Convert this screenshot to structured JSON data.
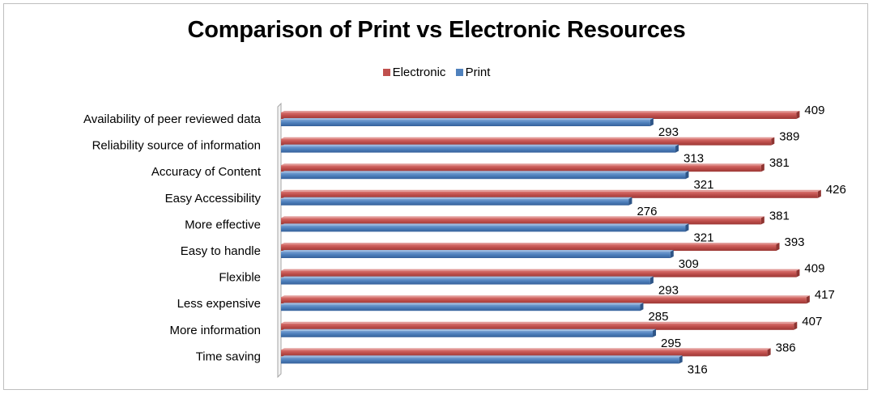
{
  "chart_data": {
    "type": "bar",
    "orientation": "horizontal",
    "title": "Comparison of Print vs Electronic Resources",
    "xlabel": "",
    "ylabel": "",
    "xlim": [
      0,
      450
    ],
    "grid": false,
    "legend_position": "top",
    "categories": [
      "Availability of peer reviewed data",
      "Reliability source of information",
      "Accuracy of Content",
      "Easy Accessibility",
      "More effective",
      "Easy to handle",
      "Flexible",
      "Less expensive",
      "More information",
      "Time saving"
    ],
    "series": [
      {
        "name": "Electronic",
        "color": "#c0504d",
        "values": [
          409,
          389,
          381,
          426,
          381,
          393,
          409,
          417,
          407,
          386
        ]
      },
      {
        "name": "Print",
        "color": "#4f81bd",
        "values": [
          293,
          313,
          321,
          276,
          321,
          309,
          293,
          285,
          295,
          316
        ]
      }
    ]
  }
}
